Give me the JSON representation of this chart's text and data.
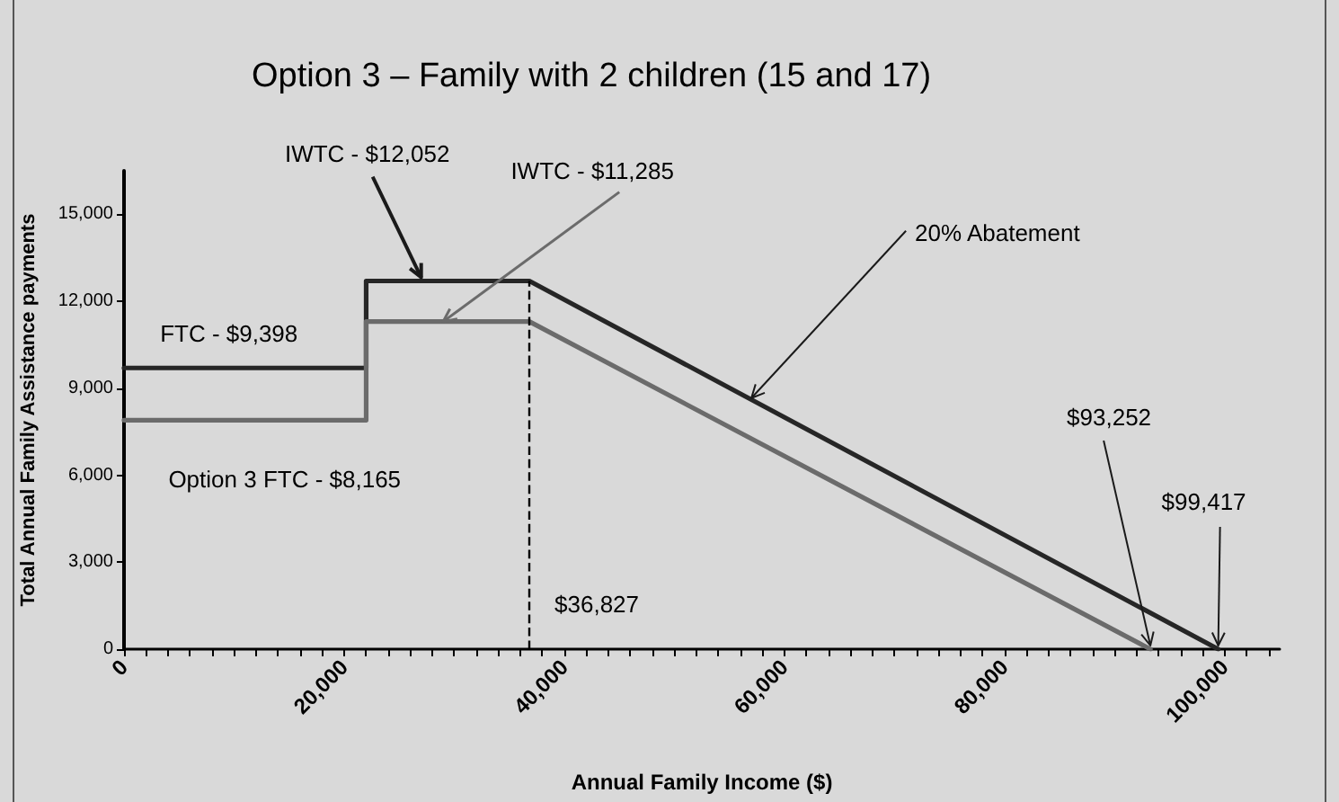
{
  "chart_data": {
    "type": "line",
    "title": "Option 3 – Family with 2 children (15 and 17)",
    "xlabel": "Annual Family Income ($)",
    "ylabel": "Total Annual Family Assistance payments",
    "series": [
      {
        "color": "#262626",
        "x": [
          0,
          22000,
          22000,
          36827,
          99417
        ],
        "values": [
          9700,
          9700,
          12700,
          12700,
          0
        ]
      },
      {
        "color": "#6b6b6b",
        "x": [
          0,
          22000,
          22000,
          36827,
          93252
        ],
        "values": [
          7900,
          7900,
          11300,
          11300,
          0
        ]
      }
    ],
    "xlim": [
      0,
      105000
    ],
    "xticks": [
      0,
      {
        "value": 2000,
        "label": null
      },
      {
        "value": 4000,
        "label": null
      },
      {
        "value": 6000,
        "label": null
      },
      {
        "value": 8000,
        "label": null
      },
      {
        "value": 10000,
        "label": null
      },
      {
        "value": 12000,
        "label": null
      },
      {
        "value": 14000,
        "label": null
      },
      {
        "value": 16000,
        "label": null
      },
      {
        "value": 18000,
        "label": null
      },
      {
        "value": 20000,
        "label": "20,000"
      },
      {
        "value": 22000,
        "label": null
      },
      {
        "value": 24000,
        "label": null
      },
      {
        "value": 26000,
        "label": null
      },
      {
        "value": 28000,
        "label": null
      },
      {
        "value": 30000,
        "label": null
      },
      {
        "value": 32000,
        "label": null
      },
      {
        "value": 34000,
        "label": null
      },
      {
        "value": 36000,
        "label": null
      },
      {
        "value": 38000,
        "label": null
      },
      {
        "value": 40000,
        "label": "40,000"
      },
      {
        "value": 42000,
        "label": null
      },
      {
        "value": 44000,
        "label": null
      },
      {
        "value": 46000,
        "label": null
      },
      {
        "value": 48000,
        "label": null
      },
      {
        "value": 50000,
        "label": null
      },
      {
        "value": 52000,
        "label": null
      },
      {
        "value": 54000,
        "label": null
      },
      {
        "value": 56000,
        "label": null
      },
      {
        "value": 58000,
        "label": null
      },
      {
        "value": 60000,
        "label": "60,000"
      },
      {
        "value": 62000,
        "label": null
      },
      {
        "value": 64000,
        "label": null
      },
      {
        "value": 66000,
        "label": null
      },
      {
        "value": 68000,
        "label": null
      },
      {
        "value": 70000,
        "label": null
      },
      {
        "value": 72000,
        "label": null
      },
      {
        "value": 74000,
        "label": null
      },
      {
        "value": 76000,
        "label": null
      },
      {
        "value": 78000,
        "label": null
      },
      {
        "value": 80000,
        "label": "80,000"
      },
      {
        "value": 82000,
        "label": null
      },
      {
        "value": 84000,
        "label": null
      },
      {
        "value": 86000,
        "label": null
      },
      {
        "value": 88000,
        "label": null
      },
      {
        "value": 90000,
        "label": null
      },
      {
        "value": 92000,
        "label": null
      },
      {
        "value": 94000,
        "label": null
      },
      {
        "value": 96000,
        "label": null
      },
      {
        "value": 98000,
        "label": null
      },
      {
        "value": 100000,
        "label": "100,000"
      },
      {
        "value": 102000,
        "label": null
      },
      {
        "value": 104000,
        "label": null
      }
    ],
    "ylim": [
      0,
      16500
    ],
    "yticks": [
      0,
      {
        "value": 3000,
        "label": "3,000"
      },
      {
        "value": 6000,
        "label": "6,000"
      },
      {
        "value": 9000,
        "label": "9,000"
      },
      {
        "value": 12000,
        "label": "12,000"
      },
      {
        "value": 15000,
        "label": "15,000"
      }
    ],
    "ref_lines": [
      {
        "axis": "x",
        "value": 36827,
        "label": "$36,827",
        "color": "#000000",
        "line_style": "dashed"
      }
    ],
    "annotations": [
      {
        "text": "IWTC - $12,052",
        "x": 27000,
        "y": 12700
      },
      {
        "text": "IWTC - $11,285",
        "x": 29000,
        "y": 11300
      },
      {
        "text": "20% Abatement",
        "x": 57000,
        "y": 8600
      },
      {
        "text": "$93,252",
        "x": 93252,
        "y": 0
      },
      {
        "text": "$99,417",
        "x": 99417,
        "y": 0
      },
      {
        "text": "FTC - $9,398",
        "x": 11000,
        "y": 9700
      },
      {
        "text": "Option 3 FTC - $8,165",
        "x": 11000,
        "y": 7900
      }
    ],
    "grid": false,
    "marker": "none"
  }
}
